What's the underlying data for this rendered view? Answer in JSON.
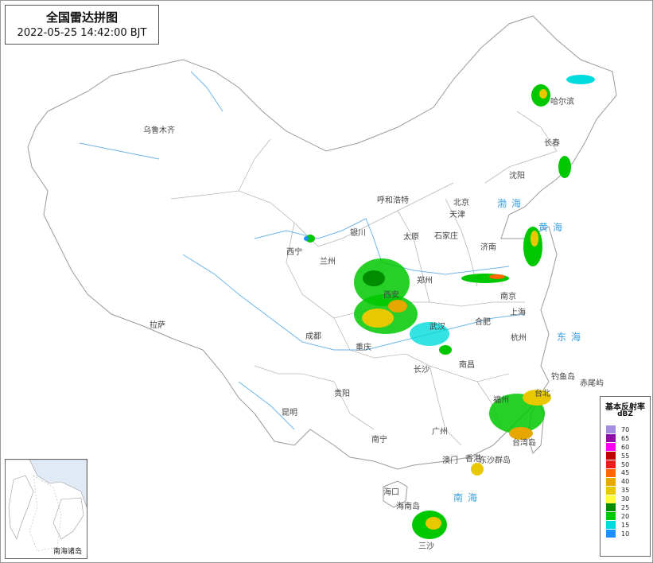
{
  "header": {
    "title": "全国雷达拼图",
    "timestamp": "2022-05-25 14:42:00 BJT"
  },
  "cities": [
    {
      "id": "urumqi",
      "name": "乌鲁木齐"
    },
    {
      "id": "lhasa",
      "name": "拉萨"
    },
    {
      "id": "xining",
      "name": "西宁"
    },
    {
      "id": "lanzhou",
      "name": "兰州"
    },
    {
      "id": "yinchuan",
      "name": "银川"
    },
    {
      "id": "hohhot",
      "name": "呼和浩特"
    },
    {
      "id": "beijing",
      "name": "北京"
    },
    {
      "id": "tianjin",
      "name": "天津"
    },
    {
      "id": "taiyuan",
      "name": "太原"
    },
    {
      "id": "shijiazhuang",
      "name": "石家庄"
    },
    {
      "id": "jinan",
      "name": "济南"
    },
    {
      "id": "zhengzhou",
      "name": "郑州"
    },
    {
      "id": "xian",
      "name": "西安"
    },
    {
      "id": "chengdu",
      "name": "成都"
    },
    {
      "id": "chongqing",
      "name": "重庆"
    },
    {
      "id": "wuhan",
      "name": "武汉"
    },
    {
      "id": "hefei",
      "name": "合肥"
    },
    {
      "id": "nanjing",
      "name": "南京"
    },
    {
      "id": "shanghai",
      "name": "上海"
    },
    {
      "id": "hangzhou",
      "name": "杭州"
    },
    {
      "id": "changsha",
      "name": "长沙"
    },
    {
      "id": "nanchang",
      "name": "南昌"
    },
    {
      "id": "guiyang",
      "name": "贵阳"
    },
    {
      "id": "kunming",
      "name": "昆明"
    },
    {
      "id": "nanning",
      "name": "南宁"
    },
    {
      "id": "guangzhou",
      "name": "广州"
    },
    {
      "id": "fuzhou",
      "name": "福州"
    },
    {
      "id": "taipei",
      "name": "台北"
    },
    {
      "id": "hongkong",
      "name": "香港"
    },
    {
      "id": "macau",
      "name": "澳门"
    },
    {
      "id": "haikou",
      "name": "海口"
    },
    {
      "id": "harbin",
      "name": "哈尔滨"
    },
    {
      "id": "changchun",
      "name": "长春"
    },
    {
      "id": "shenyang",
      "name": "沈阳"
    },
    {
      "id": "diaoyudao",
      "name": "钓鱼岛"
    },
    {
      "id": "chiweiyu",
      "name": "赤尾屿"
    },
    {
      "id": "taiwan",
      "name": "台湾岛"
    },
    {
      "id": "dongsha",
      "name": "东沙群岛"
    },
    {
      "id": "hainan",
      "name": "海南岛"
    },
    {
      "id": "sansha",
      "name": "三沙"
    }
  ],
  "seas": {
    "bohai": "渤海",
    "huanghai": "黄海",
    "donghai": "东海",
    "nanhai": "南海"
  },
  "legend": {
    "title": "基本反射率",
    "unit": "dBZ",
    "levels": [
      {
        "value": "70",
        "color": "#a58ee0"
      },
      {
        "value": "65",
        "color": "#8e10a8"
      },
      {
        "value": "60",
        "color": "#ff00f0"
      },
      {
        "value": "55",
        "color": "#c00000"
      },
      {
        "value": "50",
        "color": "#e81c1c"
      },
      {
        "value": "45",
        "color": "#ff6600"
      },
      {
        "value": "40",
        "color": "#e6a800"
      },
      {
        "value": "35",
        "color": "#e8c800"
      },
      {
        "value": "30",
        "color": "#ffff3c"
      },
      {
        "value": "25",
        "color": "#008c00"
      },
      {
        "value": "20",
        "color": "#00c800"
      },
      {
        "value": "15",
        "color": "#00dcdc"
      },
      {
        "value": "10",
        "color": "#1e90ff"
      }
    ]
  },
  "inset": {
    "label": "南海诸岛"
  },
  "colors": {
    "border": "#9a9a9a",
    "river": "#6fb6e8",
    "land": "#ffffff"
  }
}
